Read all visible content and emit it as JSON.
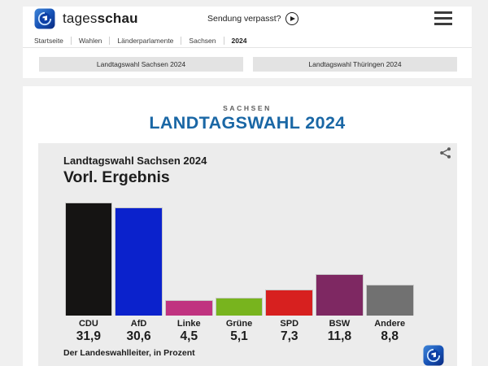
{
  "header": {
    "brand_regular": "tages",
    "brand_bold": "schau",
    "sendung_verpasst": "Sendung verpasst?"
  },
  "breadcrumb": {
    "items": [
      "Startseite",
      "Wahlen",
      "Länderparlamente",
      "Sachsen",
      "2024"
    ]
  },
  "nav_buttons": [
    {
      "label": "Landtagswahl Sachsen 2024"
    },
    {
      "label": "Landtagswahl Thüringen 2024"
    }
  ],
  "main": {
    "kicker": "SACHSEN",
    "title": "LANDTAGSWAHL 2024"
  },
  "chart_data": {
    "type": "bar",
    "title": "Landtagswahl Sachsen 2024",
    "subtitle": "Vorl. Ergebnis",
    "categories": [
      "CDU",
      "AfD",
      "Linke",
      "Grüne",
      "SPD",
      "BSW",
      "Andere"
    ],
    "values": [
      31.9,
      30.6,
      4.5,
      5.1,
      7.3,
      11.8,
      8.8
    ],
    "value_labels": [
      "31,9",
      "30,6",
      "4,5",
      "5,1",
      "7,3",
      "11,8",
      "8,8"
    ],
    "colors": [
      "#151413",
      "#0b22cc",
      "#c03380",
      "#78b41e",
      "#d7201f",
      "#7e2862",
      "#717171"
    ],
    "source": "Der Landeswahlleiter, in Prozent",
    "unit": "Prozent",
    "ylim": [
      0,
      32
    ],
    "grid": false,
    "legend": false
  },
  "colors": {
    "accent_blue": "#1a67a5",
    "page_background": "#f0f0f0",
    "chart_background": "#ececec",
    "button_gray": "#e3e3e3"
  }
}
